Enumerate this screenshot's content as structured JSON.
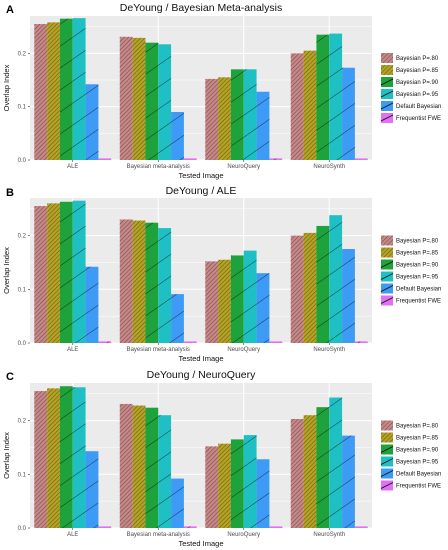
{
  "chart_data": [
    {
      "type": "bar",
      "panel_label": "A",
      "title": "DeYoung / Bayesian Meta-analysis",
      "xlabel": "Tested Image",
      "ylabel": "Overlap Index",
      "categories": [
        "ALE",
        "Bayesian meta-analysis",
        "NeuroQuery",
        "NeuroSynth"
      ],
      "ylim": [
        0,
        0.27
      ],
      "yticks": [
        "0.0",
        "0.1",
        "0.2"
      ],
      "grid": true,
      "legend_position": "right",
      "series": [
        {
          "name": "Bayesian P=.80",
          "color": "#c98686",
          "values": [
            0.255,
            0.231,
            0.152,
            0.2
          ]
        },
        {
          "name": "Bayesian P=.85",
          "color": "#b5a222",
          "values": [
            0.258,
            0.229,
            0.155,
            0.205
          ]
        },
        {
          "name": "Bayesian P=.90",
          "color": "#1ea23b",
          "values": [
            0.265,
            0.22,
            0.17,
            0.235
          ]
        },
        {
          "name": "Bayesian P=.95",
          "color": "#1fc0c4",
          "values": [
            0.266,
            0.217,
            0.17,
            0.237
          ]
        },
        {
          "name": "Default Bayesian",
          "color": "#3d9bf6",
          "values": [
            0.142,
            0.09,
            0.128,
            0.173
          ]
        },
        {
          "name": "Frequentist FWE",
          "color": "#e36ff5",
          "values": [
            0.003,
            0.003,
            0.003,
            0.003
          ]
        }
      ]
    },
    {
      "type": "bar",
      "panel_label": "B",
      "title": "DeYoung / ALE",
      "xlabel": "Tested Image",
      "ylabel": "Overlap Index",
      "categories": [
        "ALE",
        "Bayesian meta-analysis",
        "NeuroQuery",
        "NeuroSynth"
      ],
      "ylim": [
        0,
        0.27
      ],
      "yticks": [
        "0.0",
        "0.1",
        "0.2"
      ],
      "grid": true,
      "legend_position": "right",
      "series": [
        {
          "name": "Bayesian P=.80",
          "color": "#c98686",
          "values": [
            0.255,
            0.23,
            0.152,
            0.2
          ]
        },
        {
          "name": "Bayesian P=.85",
          "color": "#b5a222",
          "values": [
            0.26,
            0.228,
            0.155,
            0.205
          ]
        },
        {
          "name": "Bayesian P=.90",
          "color": "#1ea23b",
          "values": [
            0.263,
            0.224,
            0.163,
            0.218
          ]
        },
        {
          "name": "Bayesian P=.95",
          "color": "#1fc0c4",
          "values": [
            0.265,
            0.214,
            0.172,
            0.238
          ]
        },
        {
          "name": "Default Bayesian",
          "color": "#3d9bf6",
          "values": [
            0.142,
            0.091,
            0.13,
            0.175
          ]
        },
        {
          "name": "Frequentist FWE",
          "color": "#e36ff5",
          "values": [
            0.003,
            0.003,
            0.003,
            0.003
          ]
        }
      ]
    },
    {
      "type": "bar",
      "panel_label": "C",
      "title": "DeYoung / NeuroQuery",
      "xlabel": "Tested Image",
      "ylabel": "Overlap Index",
      "categories": [
        "ALE",
        "Bayesian meta-analysis",
        "NeuroQuery",
        "NeuroSynth"
      ],
      "ylim": [
        0,
        0.27
      ],
      "yticks": [
        "0.0",
        "0.1",
        "0.2"
      ],
      "grid": true,
      "legend_position": "right",
      "series": [
        {
          "name": "Bayesian P=.80",
          "color": "#c98686",
          "values": [
            0.255,
            0.231,
            0.152,
            0.203
          ]
        },
        {
          "name": "Bayesian P=.85",
          "color": "#b5a222",
          "values": [
            0.26,
            0.228,
            0.157,
            0.21
          ]
        },
        {
          "name": "Bayesian P=.90",
          "color": "#1ea23b",
          "values": [
            0.264,
            0.224,
            0.165,
            0.225
          ]
        },
        {
          "name": "Bayesian P=.95",
          "color": "#1fc0c4",
          "values": [
            0.262,
            0.21,
            0.173,
            0.243
          ]
        },
        {
          "name": "Default Bayesian",
          "color": "#3d9bf6",
          "values": [
            0.143,
            0.092,
            0.128,
            0.172
          ]
        },
        {
          "name": "Frequentist FWE",
          "color": "#e36ff5",
          "values": [
            0.003,
            0.003,
            0.003,
            0.003
          ]
        }
      ]
    }
  ]
}
